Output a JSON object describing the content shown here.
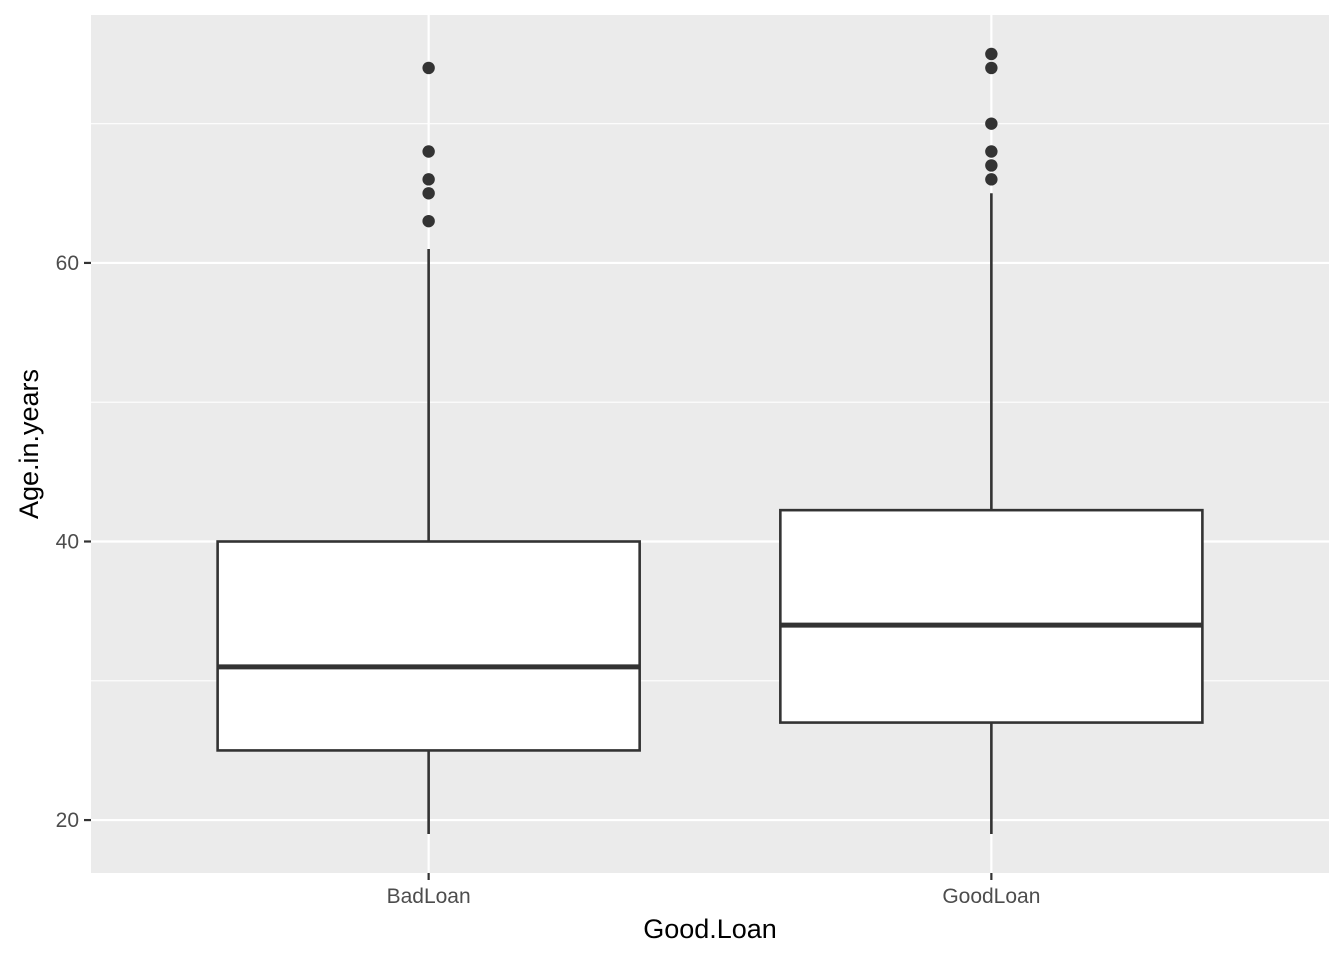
{
  "chart_data": {
    "type": "boxplot",
    "xlabel": "Good.Loan",
    "ylabel": "Age.in.years",
    "categories": [
      "BadLoan",
      "GoodLoan"
    ],
    "ylim": [
      16.2,
      77.8
    ],
    "y_ticks": [
      20,
      40,
      60
    ],
    "y_minor_ticks": [
      30,
      50,
      70
    ],
    "grid": true,
    "boxes": [
      {
        "category": "BadLoan",
        "min": 19,
        "q1": 25,
        "median": 31,
        "q3": 40,
        "max": 61,
        "outliers": [
          63,
          65,
          66,
          68,
          74
        ]
      },
      {
        "category": "GoodLoan",
        "min": 19,
        "q1": 27,
        "median": 34,
        "q3": 42.25,
        "max": 65,
        "outliers": [
          66,
          67,
          68,
          70,
          74,
          75
        ]
      }
    ],
    "colors": {
      "panel_background": "#ebebeb",
      "grid": "#ffffff",
      "box_fill": "#ffffff",
      "box_line": "#333333",
      "outlier": "#333333",
      "tick_text": "#4d4d4d",
      "title_text": "#000000"
    }
  }
}
